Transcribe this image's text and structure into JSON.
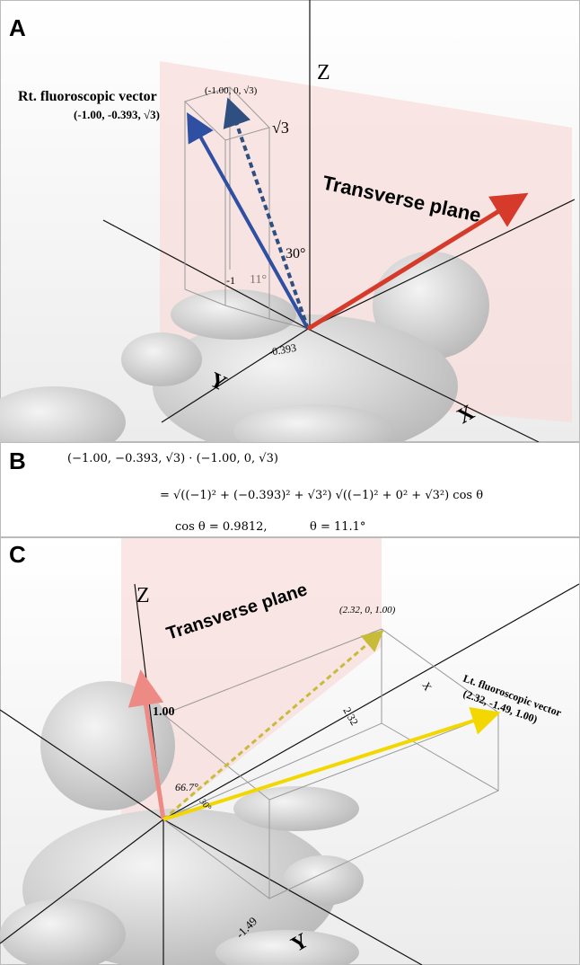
{
  "panel_a": {
    "label": "A",
    "z_axis": "Z",
    "vector_name": "Rt. fluoroscopic vector",
    "vector_coordinates": "(-1.00, -0.393, √3)",
    "reference_coordinates": "(-1.00, 0, √3)",
    "z_value": "√3",
    "plane_label": "Transverse plane",
    "angle_30": "30°",
    "angle_11": "11°",
    "x_value": "-1",
    "y_value": "-0.393",
    "y_axis": "Y",
    "x_axis": "X"
  },
  "panel_b": {
    "label": "B",
    "line_1": "(−1.00, −0.393, √3) · (−1.00, 0, √3)",
    "line_2": "= √((−1)² + (−0.393)² + √3²) √((−1)² + 0² + √3²) cos θ",
    "line_3a": "cos θ = 0.9812,",
    "line_3b": "θ = 11.1°"
  },
  "panel_c": {
    "label": "C",
    "z_axis": "Z",
    "plane_label": "Transverse plane",
    "reference_coordinates": "(2.32, 0, 1.00)",
    "z_value": "1.00",
    "x_value": "2.32",
    "x_axis_small": "X",
    "vector_name": "Lt. fluoroscopic vector",
    "vector_coordinates": "(2.32, -1.49, 1.00)",
    "angle_66": "66.7°",
    "angle_30": "30°",
    "y_value": "-1.49",
    "y_axis": "Y"
  }
}
